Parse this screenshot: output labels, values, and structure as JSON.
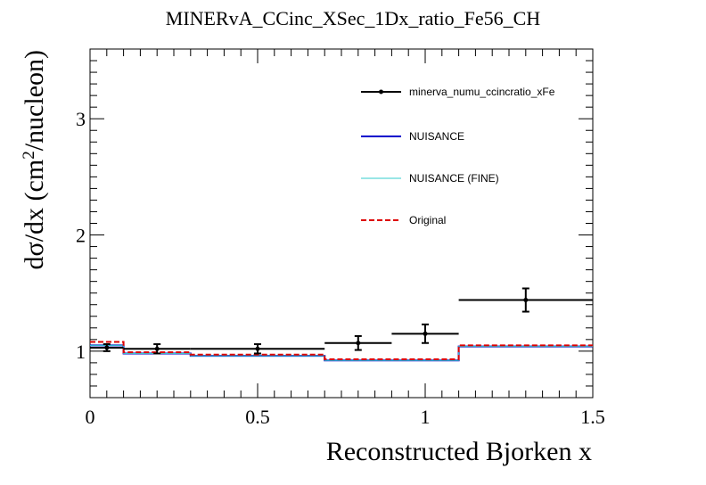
{
  "chart_data": {
    "type": "step-histogram",
    "title": "MINERvA_CCinc_XSec_1Dx_ratio_Fe56_CH",
    "xlabel": "Reconstructed Bjorken x",
    "ylabel": "dσ/dx (cm²/nucleon)",
    "ylabel_parts": {
      "before": "dσ/dx (cm",
      "sup": "2",
      "after": "/nucleon)"
    },
    "xlim": [
      0,
      1.5
    ],
    "ylim": [
      0.6,
      3.6
    ],
    "x_ticks": [
      {
        "value": 0,
        "label": "0"
      },
      {
        "value": 0.5,
        "label": "0.5"
      },
      {
        "value": 1,
        "label": "1"
      },
      {
        "value": 1.5,
        "label": "1.5"
      }
    ],
    "y_ticks": [
      {
        "value": 1,
        "label": "1"
      },
      {
        "value": 2,
        "label": "2"
      },
      {
        "value": 3,
        "label": "3"
      }
    ],
    "bin_edges": [
      0,
      0.1,
      0.3,
      0.7,
      0.9,
      1.1,
      1.5
    ],
    "series": [
      {
        "name": "minerva_numu_ccincratio_xFe",
        "kind": "points",
        "color": "#000000",
        "x": [
          0.05,
          0.2,
          0.5,
          0.8,
          1.0,
          1.3
        ],
        "x_err": [
          0.05,
          0.1,
          0.2,
          0.1,
          0.1,
          0.2
        ],
        "y": [
          1.03,
          1.02,
          1.02,
          1.07,
          1.15,
          1.44
        ],
        "y_err": [
          0.03,
          0.04,
          0.04,
          0.06,
          0.08,
          0.1
        ]
      },
      {
        "name": "NUISANCE",
        "kind": "step",
        "color": "#0000cc",
        "values": [
          1.05,
          0.98,
          0.96,
          0.92,
          0.92,
          1.04
        ]
      },
      {
        "name": "NUISANCE (FINE)",
        "kind": "step",
        "color": "#33cccc",
        "values": [
          1.05,
          0.98,
          0.96,
          0.92,
          0.92,
          1.04
        ]
      },
      {
        "name": "Original",
        "kind": "step-dashed",
        "color": "#dd0000",
        "values": [
          1.08,
          0.99,
          0.97,
          0.93,
          0.93,
          1.05
        ]
      }
    ],
    "legend_position": "top-right"
  }
}
